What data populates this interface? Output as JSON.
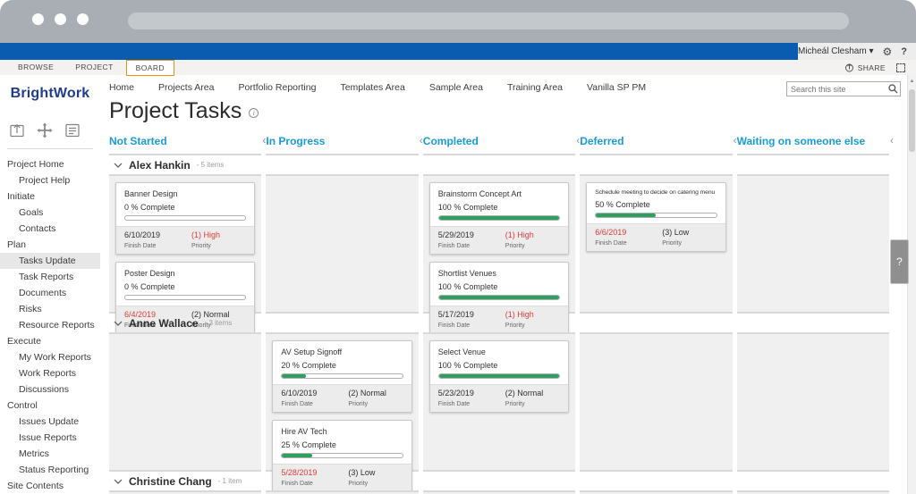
{
  "colors": {
    "suite_bar_blue": "#0a5cb0",
    "column_header_blue": "#199cd8",
    "progress_green": "#2d9f5f",
    "alert_red": "#df3b3b",
    "active_tab_border_orange": "#f09609"
  },
  "suite": {
    "user_name": "Micheál Clesham",
    "user_caret": "▾",
    "gear_icon": "⚙",
    "help_label": "?"
  },
  "ribbon": {
    "tabs": [
      "BROWSE",
      "PROJECT",
      "BOARD"
    ],
    "active_tab": "BOARD",
    "share_label": "SHARE"
  },
  "top_nav": {
    "links": [
      "Home",
      "Projects Area",
      "Portfolio Reporting",
      "Templates Area",
      "Sample Area",
      "Training Area",
      "Vanilla SP PM"
    ]
  },
  "search": {
    "placeholder": "Search this site"
  },
  "page": {
    "title": "Project Tasks"
  },
  "sidebar": {
    "brand": "BrightWork",
    "action_icons": [
      "export-icon",
      "move-icon",
      "notes-icon"
    ],
    "items": [
      {
        "label": "Project Home",
        "level": 0
      },
      {
        "label": "Project Help",
        "level": 1
      },
      {
        "label": "Initiate",
        "level": 0
      },
      {
        "label": "Goals",
        "level": 1
      },
      {
        "label": "Contacts",
        "level": 1
      },
      {
        "label": "Plan",
        "level": 0
      },
      {
        "label": "Tasks Update",
        "level": 1,
        "active": true
      },
      {
        "label": "Task Reports",
        "level": 1
      },
      {
        "label": "Documents",
        "level": 1
      },
      {
        "label": "Risks",
        "level": 1
      },
      {
        "label": "Resource Reports",
        "level": 1
      },
      {
        "label": "Execute",
        "level": 0
      },
      {
        "label": "My Work Reports",
        "level": 1
      },
      {
        "label": "Work Reports",
        "level": 1
      },
      {
        "label": "Discussions",
        "level": 1
      },
      {
        "label": "Control",
        "level": 0
      },
      {
        "label": "Issues Update",
        "level": 1
      },
      {
        "label": "Issue Reports",
        "level": 1
      },
      {
        "label": "Metrics",
        "level": 1
      },
      {
        "label": "Status Reporting",
        "level": 1
      },
      {
        "label": "Site Contents",
        "level": 0
      }
    ]
  },
  "board": {
    "columns": [
      "Not Started",
      "In Progress",
      "Completed",
      "Deferred",
      "Waiting on someone else"
    ],
    "chevron_char": "‹",
    "card_labels": {
      "finish": "Finish Date",
      "priority": "Priority"
    },
    "lanes": [
      {
        "name": "Alex Hankin",
        "count_label": "- 5 items",
        "columns": [
          [
            {
              "title": "Banner Design",
              "percent": "0 % Complete",
              "progress": 0,
              "finish_date": "6/10/2019",
              "finish_overdue": false,
              "priority": "(1) High",
              "priority_red": true
            },
            {
              "title": "Poster Design",
              "percent": "0 % Complete",
              "progress": 0,
              "finish_date": "6/4/2019",
              "finish_overdue": true,
              "priority": "(2) Normal",
              "priority_red": false
            }
          ],
          [],
          [
            {
              "title": "Brainstorm Concept Art",
              "percent": "100 % Complete",
              "progress": 100,
              "finish_date": "5/29/2019",
              "finish_overdue": false,
              "priority": "(1) High",
              "priority_red": true
            },
            {
              "title": "Shortlist Venues",
              "percent": "100 % Complete",
              "progress": 100,
              "finish_date": "5/17/2019",
              "finish_overdue": false,
              "priority": "(1) High",
              "priority_red": true
            }
          ],
          [
            {
              "title": "Schedule meeting to decide on catering menu",
              "percent": "50 % Complete",
              "progress": 50,
              "finish_date": "6/6/2019",
              "finish_overdue": true,
              "priority": "(3) Low",
              "priority_red": false
            }
          ],
          []
        ]
      },
      {
        "name": "Anne Wallace",
        "count_label": "- 3 items",
        "columns": [
          [],
          [
            {
              "title": "AV Setup Signoff",
              "percent": "20 % Complete",
              "progress": 20,
              "finish_date": "6/10/2019",
              "finish_overdue": false,
              "priority": "(2) Normal",
              "priority_red": false
            },
            {
              "title": "Hire AV Tech",
              "percent": "25 % Complete",
              "progress": 25,
              "finish_date": "5/28/2019",
              "finish_overdue": true,
              "priority": "(3) Low",
              "priority_red": false
            }
          ],
          [
            {
              "title": "Select Venue",
              "percent": "100 % Complete",
              "progress": 100,
              "finish_date": "5/23/2019",
              "finish_overdue": false,
              "priority": "(2) Normal",
              "priority_red": false
            }
          ],
          [],
          []
        ]
      },
      {
        "name": "Christine Chang",
        "count_label": "- 1 item",
        "clipped": true,
        "columns": [
          [],
          [],
          [],
          [],
          []
        ]
      }
    ]
  },
  "help_tab": {
    "label": "?"
  }
}
